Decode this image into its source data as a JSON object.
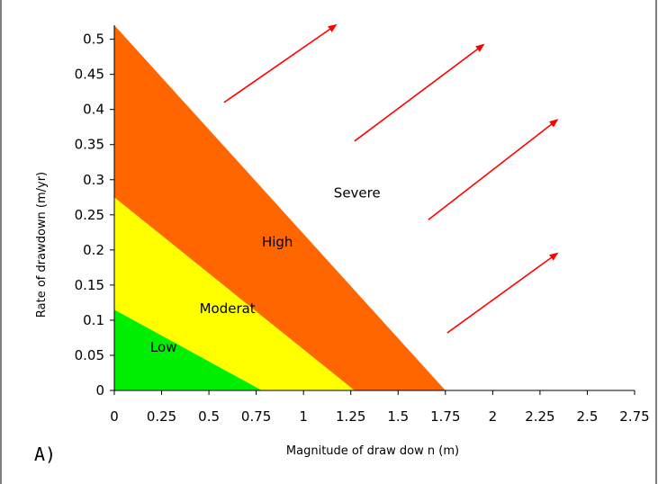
{
  "chart_data": {
    "type": "area",
    "panel_label": "A)",
    "xlabel": "Magnitude of draw dow n (m)",
    "ylabel": "Rate of drawdown (m/yr)",
    "xlim": [
      0,
      2.75
    ],
    "ylim": [
      0,
      0.52
    ],
    "x_ticks": [
      "0",
      "0.25",
      "0.5",
      "0.75",
      "1",
      "1.25",
      "1.5",
      "1.75",
      "2",
      "2.25",
      "2.5",
      "2.75"
    ],
    "y_ticks": [
      "0",
      "0.05",
      "0.1",
      "0.15",
      "0.2",
      "0.25",
      "0.3",
      "0.35",
      "0.4",
      "0.45",
      "0.5"
    ],
    "regions": [
      {
        "name": "High",
        "color": "#ff6600",
        "x_intercept": 1.75,
        "y_intercept": 0.52,
        "label_at": [
          0.78,
          0.205
        ]
      },
      {
        "name": "Moderat",
        "color": "#ffff00",
        "x_intercept": 1.27,
        "y_intercept": 0.275,
        "label_at": [
          0.45,
          0.11
        ]
      },
      {
        "name": "Low",
        "color": "#00ee00",
        "x_intercept": 0.78,
        "y_intercept": 0.115,
        "label_at": [
          0.19,
          0.055
        ]
      }
    ],
    "annotations": [
      {
        "text": "Severe",
        "at": [
          1.16,
          0.275
        ]
      }
    ],
    "arrows": [
      {
        "from": [
          0.58,
          0.41
        ],
        "to": [
          1.17,
          0.52
        ]
      },
      {
        "from": [
          1.27,
          0.355
        ],
        "to": [
          1.95,
          0.492
        ]
      },
      {
        "from": [
          1.66,
          0.243
        ],
        "to": [
          2.34,
          0.385
        ]
      },
      {
        "from": [
          1.76,
          0.082
        ],
        "to": [
          2.34,
          0.195
        ]
      }
    ],
    "arrow_color": "#ff0000",
    "grid": false,
    "legend": "none"
  }
}
